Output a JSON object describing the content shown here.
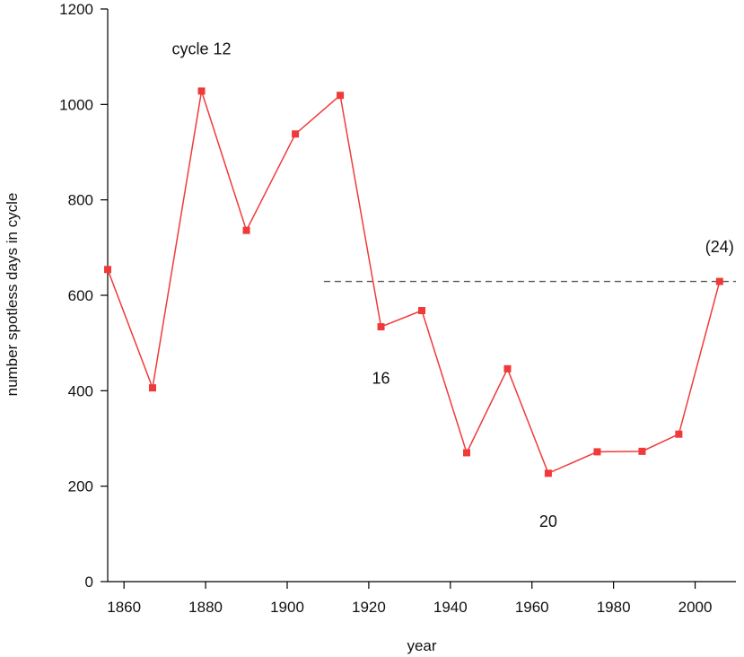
{
  "chart_data": {
    "type": "line",
    "xlabel": "year",
    "ylabel": "number spotless days in cycle",
    "xlim": [
      1856,
      2010
    ],
    "ylim": [
      0,
      1200
    ],
    "xticks": [
      1860,
      1880,
      1900,
      1920,
      1940,
      1960,
      1980,
      2000
    ],
    "yticks": [
      0,
      200,
      400,
      600,
      800,
      1000,
      1200
    ],
    "grid": false,
    "series": [
      {
        "color": "#f03a3a",
        "x": [
          1856,
          1867,
          1879,
          1890,
          1902,
          1913,
          1923,
          1933,
          1944,
          1954,
          1964,
          1976,
          1987,
          1996,
          2006
        ],
        "y": [
          654,
          406,
          1028,
          736,
          938,
          1019,
          534,
          568,
          270,
          446,
          227,
          272,
          273,
          309,
          629
        ]
      }
    ],
    "reference_line": {
      "y": 629,
      "x_start": 1909,
      "x_end": 2010,
      "color": "#555555",
      "style": "dashed"
    },
    "annotations": [
      {
        "text": "cycle 12",
        "x": 1879,
        "y": 1105
      },
      {
        "text": "16",
        "x": 1923,
        "y": 415
      },
      {
        "text": "20",
        "x": 1964,
        "y": 115
      },
      {
        "text": "(24)",
        "x": 2006,
        "y": 690
      }
    ]
  }
}
